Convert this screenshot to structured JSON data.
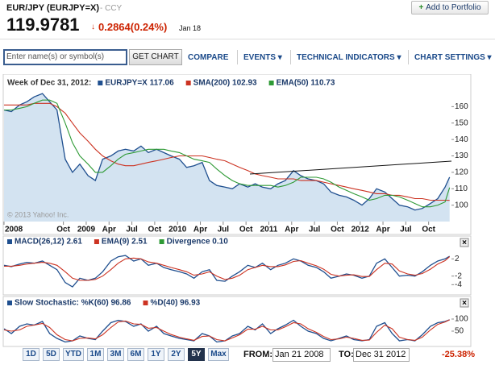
{
  "header": {
    "symbol": "EUR/JPY (EURJPY=X)",
    "exchange": "- CCY",
    "price": "119.9781",
    "change": "0.2864(0.24%)",
    "date": "Jan 18",
    "add_button": "Add to Portfolio"
  },
  "toolbar": {
    "search_placeholder": "Enter name(s) or symbol(s)",
    "get_chart": "GET CHART",
    "menu": [
      "COMPARE",
      "EVENTS",
      "TECHNICAL INDICATORS",
      "CHART SETTINGS"
    ]
  },
  "chart_data": [
    {
      "type": "line",
      "legend_title": "Week of Dec 31, 2012:",
      "annotation": "© 2013 Yahoo! Inc.",
      "xlim": [
        2008.1,
        2013.0
      ],
      "ylim": [
        90,
        170
      ],
      "yticks": [
        100,
        110,
        120,
        130,
        140,
        150,
        160
      ],
      "xticks": [
        {
          "value": 2008.1,
          "label": "2008"
        },
        {
          "value": 2008.75,
          "label": "Oct"
        },
        {
          "value": 2009,
          "label": "2009"
        },
        {
          "value": 2009.25,
          "label": "Apr"
        },
        {
          "value": 2009.5,
          "label": "Jul"
        },
        {
          "value": 2009.75,
          "label": "Oct"
        },
        {
          "value": 2010,
          "label": "2010"
        },
        {
          "value": 2010.25,
          "label": "Apr"
        },
        {
          "value": 2010.5,
          "label": "Jul"
        },
        {
          "value": 2010.75,
          "label": "Oct"
        },
        {
          "value": 2011,
          "label": "2011"
        },
        {
          "value": 2011.25,
          "label": "Apr"
        },
        {
          "value": 2011.5,
          "label": "Jul"
        },
        {
          "value": 2011.75,
          "label": "Oct"
        },
        {
          "value": 2012,
          "label": "2012"
        },
        {
          "value": 2012.25,
          "label": "Apr"
        },
        {
          "value": 2012.5,
          "label": "Jul"
        },
        {
          "value": 2012.75,
          "label": "Oct"
        }
      ],
      "x": [
        2008.1,
        2008.18,
        2008.27,
        2008.35,
        2008.43,
        2008.52,
        2008.6,
        2008.68,
        2008.77,
        2008.85,
        2008.93,
        2009.02,
        2009.1,
        2009.18,
        2009.27,
        2009.35,
        2009.43,
        2009.52,
        2009.6,
        2009.68,
        2009.77,
        2009.85,
        2009.93,
        2010.02,
        2010.1,
        2010.18,
        2010.27,
        2010.35,
        2010.43,
        2010.52,
        2010.6,
        2010.68,
        2010.77,
        2010.85,
        2010.93,
        2011.02,
        2011.1,
        2011.18,
        2011.27,
        2011.35,
        2011.43,
        2011.52,
        2011.6,
        2011.68,
        2011.77,
        2011.85,
        2011.93,
        2012.02,
        2012.1,
        2012.18,
        2012.27,
        2012.35,
        2012.43,
        2012.52,
        2012.6,
        2012.68,
        2012.77,
        2012.85,
        2012.93,
        2012.98
      ],
      "area_color": "#d3e3f1",
      "series": [
        {
          "name": "EURJPY=X 117.06",
          "color": "#1f4f8f",
          "values": [
            158,
            157,
            161,
            163,
            166,
            168,
            163,
            158,
            128,
            120,
            125,
            118,
            115,
            128,
            130,
            133,
            134,
            133,
            136,
            132,
            134,
            132,
            130,
            128,
            123,
            124,
            126,
            115,
            112,
            111,
            110,
            113,
            111,
            113,
            111,
            110,
            113,
            115,
            121,
            118,
            116,
            115,
            113,
            108,
            106,
            105,
            103,
            100,
            104,
            110,
            108,
            104,
            100,
            99,
            97,
            98,
            101,
            104,
            111,
            117.06
          ]
        },
        {
          "name": "SMA(200) 102.93",
          "color": "#cc3322",
          "values": [
            161,
            161,
            161,
            161,
            162,
            162,
            162,
            160,
            156,
            150,
            144,
            139,
            134,
            130,
            127,
            125,
            124,
            124,
            125,
            126,
            127,
            128,
            129,
            130,
            130,
            130,
            130,
            129,
            128,
            127,
            125,
            123,
            121,
            119,
            118,
            117,
            116,
            116,
            116,
            115,
            115,
            115,
            114,
            113,
            112,
            111,
            110,
            109,
            108,
            107,
            107,
            106,
            106,
            105,
            104,
            104,
            103,
            103,
            103,
            102.93
          ]
        },
        {
          "name": "EMA(50) 110.73",
          "color": "#2e9a35",
          "values": [
            158,
            158,
            159,
            160,
            162,
            164,
            164,
            162,
            150,
            138,
            130,
            125,
            120,
            120,
            124,
            128,
            131,
            132,
            133,
            134,
            134,
            134,
            133,
            132,
            130,
            128,
            127,
            126,
            122,
            118,
            115,
            113,
            112,
            112,
            112,
            112,
            111,
            112,
            114,
            117,
            117,
            117,
            116,
            114,
            111,
            109,
            107,
            105,
            103,
            104,
            106,
            106,
            105,
            103,
            101,
            99,
            99,
            100,
            102,
            110.73
          ]
        }
      ]
    },
    {
      "type": "line",
      "legend_extra": {
        "text": "Divergence 0.10",
        "color": "#2e9a35"
      },
      "xlim": [
        2008.1,
        2013.0
      ],
      "ylim": [
        -6,
        4.5
      ],
      "yticks": [
        2,
        -2,
        -4
      ],
      "x": [
        2008.1,
        2008.18,
        2008.27,
        2008.35,
        2008.43,
        2008.52,
        2008.6,
        2008.68,
        2008.77,
        2008.85,
        2008.93,
        2009.02,
        2009.1,
        2009.18,
        2009.27,
        2009.35,
        2009.43,
        2009.52,
        2009.6,
        2009.68,
        2009.77,
        2009.85,
        2009.93,
        2010.02,
        2010.1,
        2010.18,
        2010.27,
        2010.35,
        2010.43,
        2010.52,
        2010.6,
        2010.68,
        2010.77,
        2010.85,
        2010.93,
        2011.02,
        2011.1,
        2011.18,
        2011.27,
        2011.35,
        2011.43,
        2011.52,
        2011.6,
        2011.68,
        2011.77,
        2011.85,
        2011.93,
        2012.02,
        2012.1,
        2012.18,
        2012.27,
        2012.35,
        2012.43,
        2012.52,
        2012.6,
        2012.68,
        2012.77,
        2012.85,
        2012.93,
        2012.98
      ],
      "series": [
        {
          "name": "MACD(26,12) 2.61",
          "color": "#1f4f8f",
          "values": [
            0.5,
            0.2,
            0.8,
            1.2,
            1.0,
            1.5,
            0.5,
            -0.5,
            -3.5,
            -4.5,
            -2.5,
            -3,
            -2.5,
            -1,
            1.5,
            2.5,
            2.8,
            1.5,
            2,
            0.5,
            1,
            0,
            -0.5,
            -1,
            -1.5,
            -2.5,
            -1,
            -0.5,
            -3,
            -3.2,
            -2,
            -1,
            0.5,
            0,
            1,
            -0.5,
            0.5,
            1,
            2,
            1.5,
            0.5,
            0,
            -1,
            -2.5,
            -2,
            -1.5,
            -1.8,
            -2.5,
            -2,
            1,
            2,
            0,
            -2,
            -1.8,
            -2,
            -1,
            0.5,
            1.5,
            2,
            2.61
          ]
        },
        {
          "name": "EMA(9) 2.51",
          "color": "#cc3322",
          "values": [
            0.3,
            0.3,
            0.5,
            0.8,
            1,
            1.2,
            1,
            0.5,
            -1,
            -2.5,
            -3,
            -3,
            -2.8,
            -2,
            -0.5,
            1,
            2,
            2.2,
            2,
            1.3,
            1,
            0.5,
            0,
            -0.5,
            -1,
            -1.8,
            -1.5,
            -1,
            -2,
            -2.8,
            -2.5,
            -1.8,
            -0.5,
            0,
            0.5,
            0.2,
            0.2,
            0.6,
            1.4,
            1.6,
            1,
            0.4,
            -0.4,
            -1.6,
            -2,
            -1.8,
            -1.7,
            -2.1,
            -2.1,
            -0.5,
            1,
            0.8,
            -0.8,
            -1.5,
            -1.8,
            -1.4,
            -0.4,
            0.8,
            1.6,
            2.51
          ]
        }
      ]
    },
    {
      "type": "line",
      "xlim": [
        2008.1,
        2013.0
      ],
      "ylim": [
        0,
        100
      ],
      "yticks": [
        100,
        50
      ],
      "x": [
        2008.1,
        2008.18,
        2008.27,
        2008.35,
        2008.43,
        2008.52,
        2008.6,
        2008.68,
        2008.77,
        2008.85,
        2008.93,
        2009.02,
        2009.1,
        2009.18,
        2009.27,
        2009.35,
        2009.43,
        2009.52,
        2009.6,
        2009.68,
        2009.77,
        2009.85,
        2009.93,
        2010.02,
        2010.1,
        2010.18,
        2010.27,
        2010.35,
        2010.43,
        2010.52,
        2010.6,
        2010.68,
        2010.77,
        2010.85,
        2010.93,
        2011.02,
        2011.1,
        2011.18,
        2011.27,
        2011.35,
        2011.43,
        2011.52,
        2011.6,
        2011.68,
        2011.77,
        2011.85,
        2011.93,
        2012.02,
        2012.1,
        2012.18,
        2012.27,
        2012.35,
        2012.43,
        2012.52,
        2012.6,
        2012.68,
        2012.77,
        2012.85,
        2012.93,
        2012.98
      ],
      "series": [
        {
          "name": "Slow Stochastic: %K(60) 96.86",
          "color": "#1f4f8f",
          "values": [
            60,
            40,
            70,
            80,
            75,
            90,
            40,
            20,
            5,
            10,
            30,
            20,
            15,
            50,
            85,
            95,
            90,
            70,
            80,
            50,
            70,
            40,
            30,
            20,
            15,
            10,
            40,
            30,
            5,
            10,
            30,
            40,
            70,
            55,
            80,
            40,
            60,
            75,
            95,
            70,
            50,
            40,
            20,
            10,
            20,
            30,
            15,
            10,
            15,
            70,
            85,
            40,
            10,
            15,
            10,
            35,
            70,
            85,
            90,
            96.86
          ]
        },
        {
          "name": "%D(40) 96.93",
          "color": "#cc3322",
          "values": [
            55,
            50,
            55,
            70,
            75,
            82,
            65,
            35,
            15,
            10,
            20,
            22,
            18,
            35,
            65,
            88,
            92,
            80,
            78,
            62,
            65,
            50,
            36,
            25,
            18,
            12,
            28,
            30,
            15,
            10,
            22,
            35,
            58,
            58,
            70,
            55,
            55,
            68,
            85,
            80,
            60,
            45,
            28,
            15,
            18,
            25,
            20,
            12,
            13,
            45,
            75,
            60,
            25,
            15,
            12,
            25,
            55,
            78,
            88,
            96.93
          ]
        }
      ]
    }
  ],
  "range_bar": {
    "buttons": [
      "1D",
      "5D",
      "YTD",
      "1M",
      "3M",
      "6M",
      "1Y",
      "2Y",
      "5Y",
      "Max"
    ],
    "active_index": 8,
    "from_label": "FROM:",
    "from_value": "Jan 21 2008",
    "to_label": "TO:",
    "to_value": "Dec 31 2012",
    "performance": "-25.38%"
  }
}
